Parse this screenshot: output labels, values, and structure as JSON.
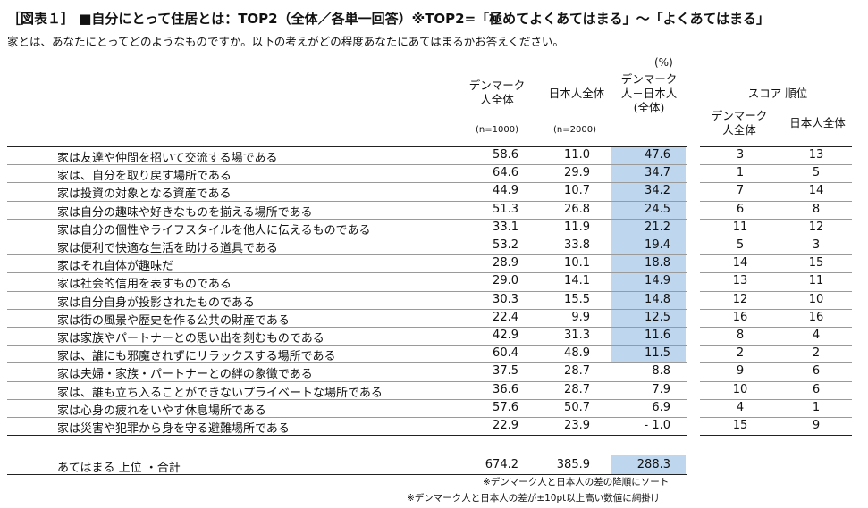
{
  "title": "［図表１］ ■自分にとって住居とは：TOP2（全体／各単一回答）※TOP2=「極めてよくあてはまる」〜「よくあてはまる」",
  "subtitle": "家とは、あなたにとってどのようなものですか。以下の考えがどの程度あなたにあてはまるかお答えください。",
  "unit": "(%)",
  "headers": {
    "denmark": "デンマーク\n人全体",
    "japan": "日本人全体",
    "diff": "デンマーク\n人－日本人\n(全体)",
    "score_rank": "スコア 順位",
    "rank_denmark": "デンマーク\n人全体",
    "rank_japan": "日本人全体",
    "n_denmark": "(n=1000)",
    "n_japan": "(n=2000)"
  },
  "chart_data": {
    "type": "table",
    "columns": [
      "デンマーク人全体",
      "日本人全体",
      "デンマーク人－日本人(全体)",
      "デンマーク人全体 順位",
      "日本人全体 順位"
    ],
    "rows": [
      {
        "label": "家は友達や仲間を招いて交流する場である",
        "denmark": "58.6",
        "japan": "11.0",
        "diff": "47.6",
        "rank_denmark": "3",
        "rank_japan": "13",
        "highlight": true
      },
      {
        "label": "家は、自分を取り戻す場所である",
        "denmark": "64.6",
        "japan": "29.9",
        "diff": "34.7",
        "rank_denmark": "1",
        "rank_japan": "5",
        "highlight": true
      },
      {
        "label": "家は投資の対象となる資産である",
        "denmark": "44.9",
        "japan": "10.7",
        "diff": "34.2",
        "rank_denmark": "7",
        "rank_japan": "14",
        "highlight": true
      },
      {
        "label": "家は自分の趣味や好きなものを揃える場所である",
        "denmark": "51.3",
        "japan": "26.8",
        "diff": "24.5",
        "rank_denmark": "6",
        "rank_japan": "8",
        "highlight": true
      },
      {
        "label": "家は自分の個性やライフスタイルを他人に伝えるものである",
        "denmark": "33.1",
        "japan": "11.9",
        "diff": "21.2",
        "rank_denmark": "11",
        "rank_japan": "12",
        "highlight": true
      },
      {
        "label": "家は便利で快適な生活を助ける道具である",
        "denmark": "53.2",
        "japan": "33.8",
        "diff": "19.4",
        "rank_denmark": "5",
        "rank_japan": "3",
        "highlight": true
      },
      {
        "label": "家はそれ自体が趣味だ",
        "denmark": "28.9",
        "japan": "10.1",
        "diff": "18.8",
        "rank_denmark": "14",
        "rank_japan": "15",
        "highlight": true
      },
      {
        "label": "家は社会的信用を表すものである",
        "denmark": "29.0",
        "japan": "14.1",
        "diff": "14.9",
        "rank_denmark": "13",
        "rank_japan": "11",
        "highlight": true
      },
      {
        "label": "家は自分自身が投影されたものである",
        "denmark": "30.3",
        "japan": "15.5",
        "diff": "14.8",
        "rank_denmark": "12",
        "rank_japan": "10",
        "highlight": true
      },
      {
        "label": "家は街の風景や歴史を作る公共の財産である",
        "denmark": "22.4",
        "japan": "9.9",
        "diff": "12.5",
        "rank_denmark": "16",
        "rank_japan": "16",
        "highlight": true
      },
      {
        "label": "家は家族やパートナーとの思い出を刻むものである",
        "denmark": "42.9",
        "japan": "31.3",
        "diff": "11.6",
        "rank_denmark": "8",
        "rank_japan": "4",
        "highlight": true
      },
      {
        "label": "家は、誰にも邪魔されずにリラックスする場所である",
        "denmark": "60.4",
        "japan": "48.9",
        "diff": "11.5",
        "rank_denmark": "2",
        "rank_japan": "2",
        "highlight": true
      },
      {
        "label": "家は夫婦・家族・パートナーとの絆の象徴である",
        "denmark": "37.5",
        "japan": "28.7",
        "diff": "8.8",
        "rank_denmark": "9",
        "rank_japan": "6",
        "highlight": false
      },
      {
        "label": "家は、誰も立ち入ることができないプライベートな場所である",
        "denmark": "36.6",
        "japan": "28.7",
        "diff": "7.9",
        "rank_denmark": "10",
        "rank_japan": "6",
        "highlight": false
      },
      {
        "label": "家は心身の疲れをいやす休息場所である",
        "denmark": "57.6",
        "japan": "50.7",
        "diff": "6.9",
        "rank_denmark": "4",
        "rank_japan": "1",
        "highlight": false
      },
      {
        "label": "家は災害や犯罪から身を守る避難場所である",
        "denmark": "22.9",
        "japan": "23.9",
        "diff": "-   1.0",
        "rank_denmark": "15",
        "rank_japan": "9",
        "highlight": false
      }
    ],
    "total": {
      "label": "あてはまる 上位 ・合計",
      "denmark": "674.2",
      "japan": "385.9",
      "diff": "288.3"
    }
  },
  "notes": [
    "※デンマーク人と日本人の差の降順にソート",
    "※デンマーク人と日本人の差が±10pt以上高い数値に網掛け"
  ],
  "colors": {
    "highlight": "#bed6ee",
    "line": "#222222"
  }
}
